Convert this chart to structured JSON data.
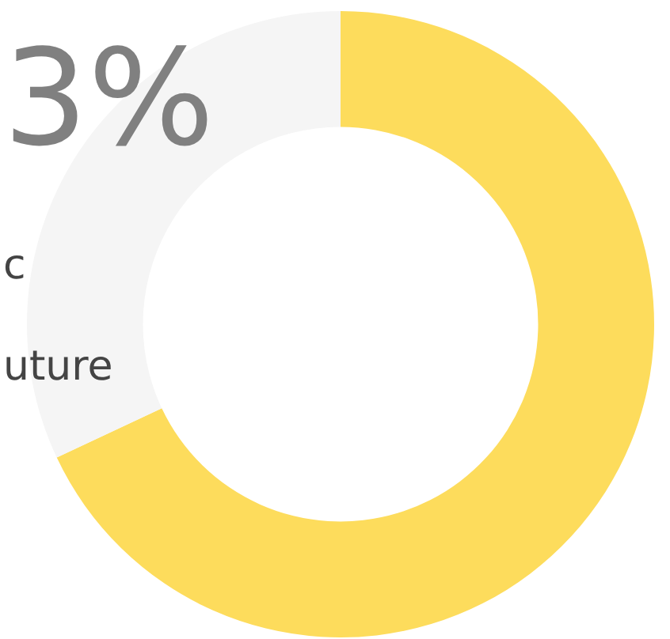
{
  "chart_data": {
    "type": "donut",
    "categories": [
      null,
      null
    ],
    "values": [
      68,
      32
    ],
    "colors": [
      "#fddc5c",
      "#f5f5f5"
    ],
    "annotations": [
      "3%",
      "c",
      "uture"
    ],
    "legend": false
  }
}
